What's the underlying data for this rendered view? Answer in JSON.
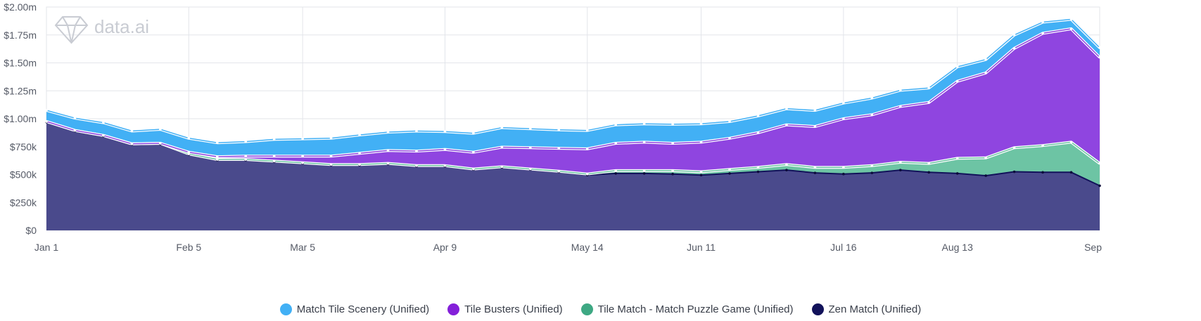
{
  "watermark": {
    "text": "data.ai"
  },
  "colors": {
    "match_tile_scenery": "#42b0f5",
    "tile_busters": "#8f45e0",
    "tile_match": "#6dc4a4",
    "zen_match": "#4a4a8c",
    "zen_match_line": "#12125a",
    "grid": "#e3e5ea"
  },
  "chart_data": {
    "type": "area",
    "stacked": true,
    "title": "",
    "xlabel": "",
    "ylabel": "",
    "ylim": [
      0,
      2000000
    ],
    "ytick_values": [
      0,
      250000,
      500000,
      750000,
      1000000,
      1250000,
      1500000,
      1750000,
      2000000
    ],
    "ytick_labels": [
      "$0",
      "$250k",
      "$500k",
      "$750k",
      "$1.00m",
      "$1.25m",
      "$1.50m",
      "$1.75m",
      "$2.00m"
    ],
    "xtick_labels": [
      "Jan 1",
      "Feb 5",
      "Mar 5",
      "Apr 9",
      "May 14",
      "Jun 11",
      "Jul 16",
      "Aug 13",
      "Sep"
    ],
    "xtick_week_index": [
      0,
      5,
      9,
      14,
      19,
      23,
      28,
      32,
      37
    ],
    "grid": true,
    "legend_position": "bottom",
    "series": [
      {
        "name": "Zen Match (Unified)",
        "color_key": "zen_match",
        "values": [
          970000,
          890000,
          845000,
          770000,
          775000,
          680000,
          630000,
          630000,
          615000,
          600000,
          585000,
          585000,
          595000,
          575000,
          575000,
          545000,
          565000,
          545000,
          525000,
          495000,
          510000,
          510000,
          505000,
          495000,
          510000,
          525000,
          540000,
          515000,
          505000,
          515000,
          540000,
          520000,
          510000,
          490000,
          525000,
          520000,
          520000,
          400000
        ]
      },
      {
        "name": "Tile Match - Match Puzzle Game (Unified)",
        "color_key": "tile_match",
        "values": [
          5000,
          5000,
          5000,
          5000,
          5000,
          5000,
          5000,
          5000,
          5000,
          5000,
          5000,
          5000,
          5000,
          5000,
          5000,
          5000,
          5000,
          5000,
          5000,
          10000,
          25000,
          25000,
          30000,
          30000,
          35000,
          40000,
          50000,
          50000,
          60000,
          65000,
          70000,
          80000,
          135000,
          160000,
          215000,
          240000,
          270000,
          200000
        ]
      },
      {
        "name": "Tile Busters (Unified)",
        "color_key": "tile_busters",
        "values": [
          0,
          0,
          0,
          0,
          0,
          15000,
          25000,
          30000,
          45000,
          60000,
          75000,
          100000,
          115000,
          130000,
          145000,
          150000,
          175000,
          190000,
          205000,
          225000,
          245000,
          255000,
          245000,
          265000,
          280000,
          310000,
          355000,
          365000,
          435000,
          455000,
          500000,
          545000,
          690000,
          760000,
          890000,
          1005000,
          1015000,
          950000
        ]
      },
      {
        "name": "Match Tile Scenery (Unified)",
        "color_key": "match_tile_scenery",
        "values": [
          100000,
          110000,
          115000,
          115000,
          125000,
          125000,
          125000,
          130000,
          150000,
          155000,
          160000,
          165000,
          165000,
          180000,
          160000,
          170000,
          175000,
          170000,
          165000,
          165000,
          165000,
          165000,
          170000,
          165000,
          150000,
          150000,
          145000,
          145000,
          140000,
          150000,
          145000,
          130000,
          130000,
          120000,
          120000,
          100000,
          85000,
          85000
        ]
      }
    ]
  }
}
